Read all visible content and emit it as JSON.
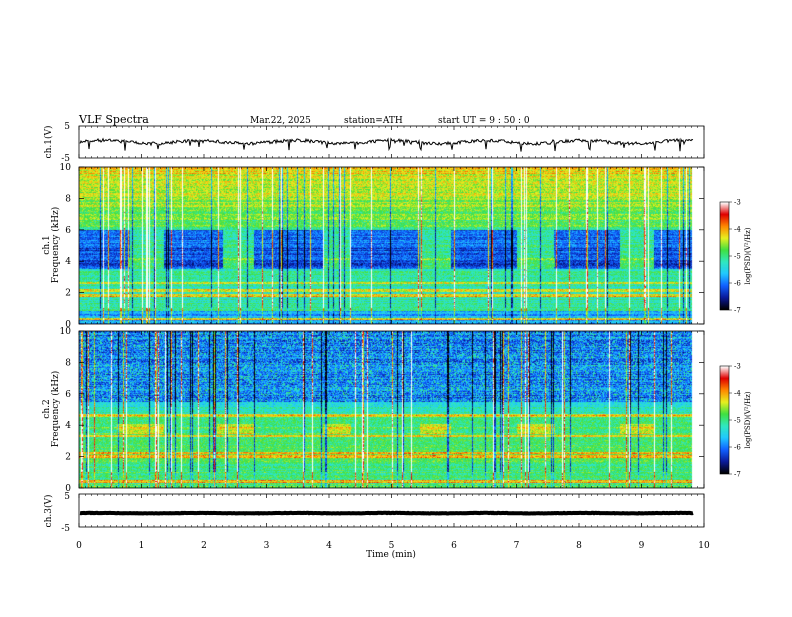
{
  "header": {
    "title": "VLF  Spectra",
    "date": "Mar.22, 2025",
    "station": "station=ATH",
    "start_ut": "start  UT  =   9  : 50 : 0"
  },
  "colors": {
    "ch1_trace": "#000000",
    "ch3_trace": "#000000",
    "colormap": [
      "#000000",
      "#0a1a9a",
      "#1060ff",
      "#20c8ff",
      "#30e8c0",
      "#40e040",
      "#e8f020",
      "#ff8800",
      "#e00000",
      "#ffffff"
    ]
  },
  "chart_data": [
    {
      "id": "ch1-waveform",
      "type": "line",
      "ylabel": "ch.1(V)",
      "ylim": [
        -5,
        5
      ],
      "yticks": [
        "5",
        "-5"
      ],
      "xlim": [
        0,
        10
      ],
      "baseline": 0,
      "amplitude_range": [
        -1.5,
        1.5
      ],
      "spikes_min": [
        0.15,
        0.72,
        1.25,
        1.9,
        2.62,
        3.35,
        3.95,
        4.4,
        4.95,
        5.45,
        5.95,
        6.5,
        7.05,
        7.6,
        8.15,
        8.7,
        9.2,
        9.6
      ]
    },
    {
      "id": "ch1-spectrogram",
      "type": "heatmap",
      "ylabel": "ch.1\nFrequency  (kHz)",
      "ylim": [
        0,
        10
      ],
      "yticks": [
        "0",
        "2",
        "4",
        "6",
        "8",
        "10"
      ],
      "xlim": [
        0,
        10
      ],
      "data_xmax": 9.8,
      "colorbar": {
        "label": "log(PSD)(V²/Hz)",
        "range": [
          -7,
          -3
        ],
        "ticks": [
          "-3",
          "-4",
          "-5",
          "-6",
          "-7"
        ]
      },
      "quiet_band_khz": [
        3.5,
        6.0
      ],
      "quiet_band_windows_min": [
        [
          0,
          0.8
        ],
        [
          1.35,
          2.3
        ],
        [
          2.8,
          3.9
        ],
        [
          4.35,
          5.45
        ],
        [
          5.95,
          7.0
        ],
        [
          7.6,
          8.65
        ],
        [
          9.2,
          9.8
        ]
      ],
      "transmitter_pulse_windows_min": [
        [
          0.8,
          1.35
        ],
        [
          2.3,
          2.8
        ],
        [
          3.9,
          4.35
        ],
        [
          5.45,
          5.95
        ],
        [
          7.0,
          7.6
        ],
        [
          8.65,
          9.2
        ]
      ],
      "transmitter_pulse_khz": [
        3.6,
        4.2
      ],
      "strong_lines_khz": [
        0.3,
        1.8,
        2.1,
        2.6
      ]
    },
    {
      "id": "ch2-spectrogram",
      "type": "heatmap",
      "ylabel": "ch.2\nFrequency  (kHz)",
      "ylim": [
        0,
        10
      ],
      "yticks": [
        "0",
        "2",
        "4",
        "6",
        "8",
        "10"
      ],
      "xlim": [
        0,
        10
      ],
      "data_xmax": 9.8,
      "colorbar": {
        "label": "log(PSD)(V²/Hz)",
        "range": [
          -7,
          -3
        ],
        "ticks": [
          "-3",
          "-4",
          "-5",
          "-6",
          "-7"
        ]
      },
      "quiet_band_khz": [
        5.5,
        10.0
      ],
      "transmitter_pulse_windows_min": [
        [
          0.6,
          1.35
        ],
        [
          2.2,
          2.8
        ],
        [
          3.9,
          4.35
        ],
        [
          5.45,
          5.95
        ],
        [
          7.0,
          7.6
        ],
        [
          8.65,
          9.2
        ]
      ],
      "transmitter_pulse_khz": [
        3.4,
        4.1
      ],
      "strong_lines_khz": [
        0.4,
        2.0,
        2.2,
        3.3,
        4.6
      ]
    },
    {
      "id": "ch3-waveform",
      "type": "line",
      "ylabel": "ch.3(V)",
      "ylim": [
        -5,
        5
      ],
      "yticks": [
        "5",
        "-5"
      ],
      "xlim": [
        0,
        10
      ],
      "baseline": -0.8,
      "amplitude_range": [
        -0.15,
        0.15
      ]
    }
  ],
  "xaxis": {
    "label": "Time  (min)",
    "ticks": [
      "0",
      "1",
      "2",
      "3",
      "4",
      "5",
      "6",
      "7",
      "8",
      "9",
      "10"
    ]
  }
}
